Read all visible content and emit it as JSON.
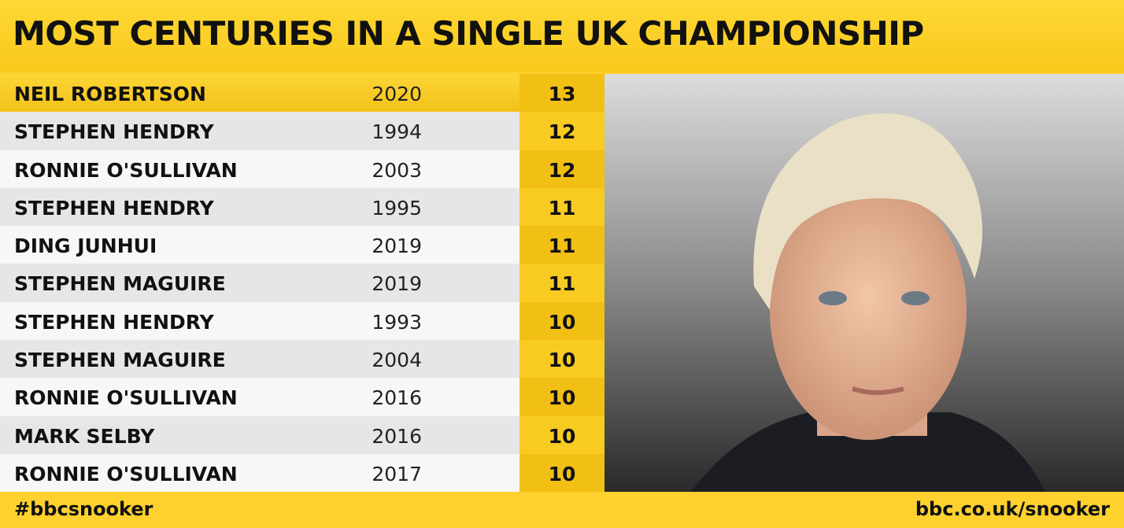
{
  "header": {
    "title": "MOST CENTURIES IN A SINGLE UK CHAMPIONSHIP"
  },
  "table": {
    "rows": [
      [
        "NEIL ROBERTSON",
        "2020",
        "13"
      ],
      [
        "STEPHEN HENDRY",
        "1994",
        "12"
      ],
      [
        "RONNIE O'SULLIVAN",
        "2003",
        "12"
      ],
      [
        "STEPHEN HENDRY",
        "1995",
        "11"
      ],
      [
        "DING JUNHUI",
        "2019",
        "11"
      ],
      [
        "STEPHEN MAGUIRE",
        "2019",
        "11"
      ],
      [
        "STEPHEN HENDRY",
        "1993",
        "10"
      ],
      [
        "STEPHEN MAGUIRE",
        "2004",
        "10"
      ],
      [
        "RONNIE O'SULLIVAN",
        "2016",
        "10"
      ],
      [
        "MARK SELBY",
        "2016",
        "10"
      ],
      [
        "RONNIE O'SULLIVAN",
        "2017",
        "10"
      ]
    ]
  },
  "footer": {
    "left": "#bbcsnooker",
    "right": "bbc.co.uk/snooker"
  }
}
